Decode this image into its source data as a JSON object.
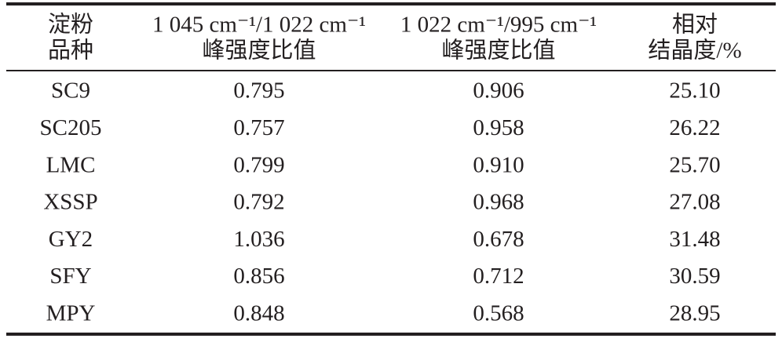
{
  "table": {
    "header": [
      [
        "淀粉",
        "品种"
      ],
      [
        "1 045 cm⁻¹/1 022 cm⁻¹",
        "峰强度比值"
      ],
      [
        "1 022 cm⁻¹/995 cm⁻¹",
        "峰强度比值"
      ],
      [
        "相对",
        "结晶度/%"
      ]
    ],
    "rows": [
      [
        "SC9",
        "0.795",
        "0.906",
        "25.10"
      ],
      [
        "SC205",
        "0.757",
        "0.958",
        "26.22"
      ],
      [
        "LMC",
        "0.799",
        "0.910",
        "25.70"
      ],
      [
        "XSSP",
        "0.792",
        "0.968",
        "27.08"
      ],
      [
        "GY2",
        "1.036",
        "0.678",
        "31.48"
      ],
      [
        "SFY",
        "0.856",
        "0.712",
        "30.59"
      ],
      [
        "MPY",
        "0.848",
        "0.568",
        "28.95"
      ]
    ]
  }
}
